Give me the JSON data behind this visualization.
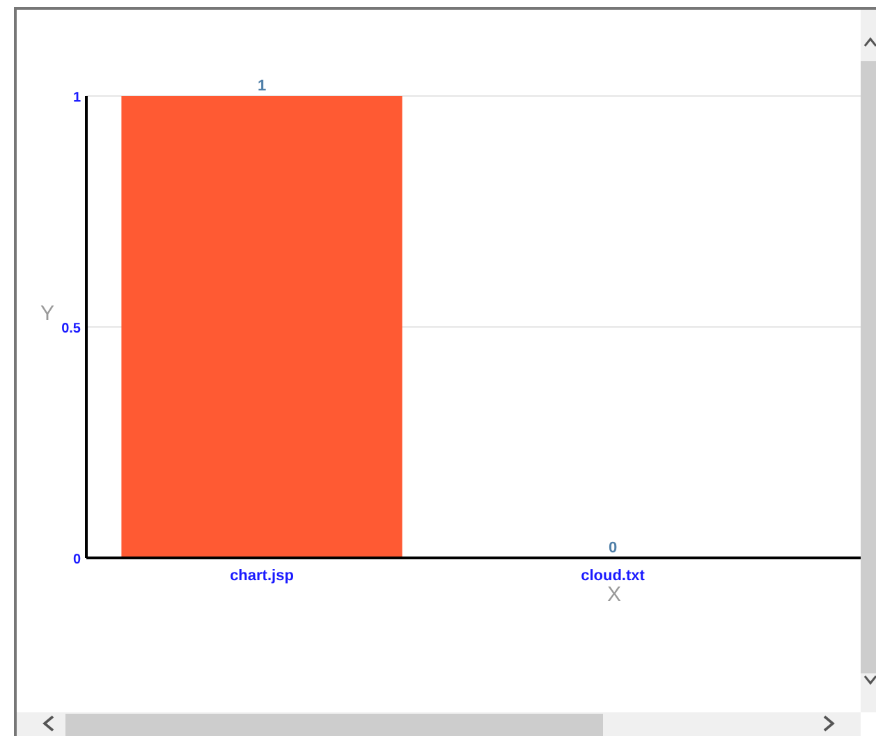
{
  "chart_data": {
    "type": "bar",
    "categories": [
      "chart.jsp",
      "cloud.txt"
    ],
    "values": [
      1,
      0
    ],
    "color": "#ff5a33",
    "xlabel": "X",
    "ylabel": "Y",
    "ylim": [
      0,
      1
    ],
    "yticks": [
      0,
      0.5,
      1
    ],
    "grid": "y",
    "data_labels": true
  }
}
